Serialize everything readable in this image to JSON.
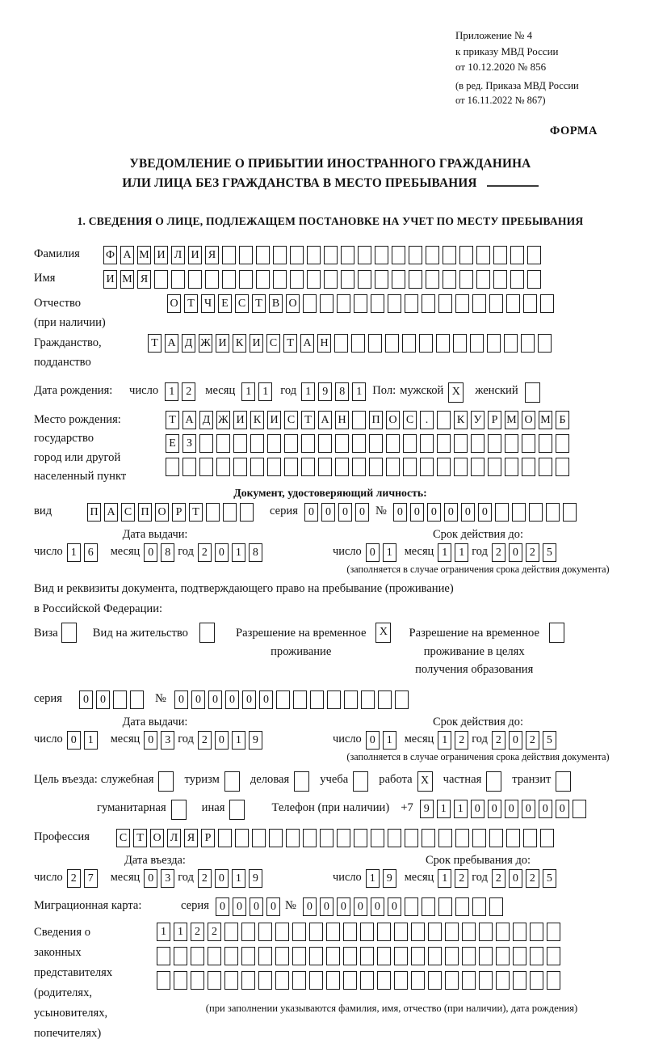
{
  "header": {
    "appendix_lines": [
      "Приложение № 4",
      "к приказу МВД России",
      "от 10.12.2020 № 856"
    ],
    "revision_lines": [
      "(в ред. Приказа МВД России",
      "от 16.11.2022 № 867)"
    ],
    "form_label": "ФОРМА"
  },
  "title": {
    "line1": "УВЕДОМЛЕНИЕ О ПРИБЫТИИ ИНОСТРАННОГО ГРАЖДАНИНА",
    "line2": "ИЛИ ЛИЦА БЕЗ ГРАЖДАНСТВА В МЕСТО ПРЕБЫВАНИЯ"
  },
  "section1_title": "1. СВЕДЕНИЯ О ЛИЦЕ, ПОДЛЕЖАЩЕМ ПОСТАНОВКЕ НА УЧЕТ ПО МЕСТУ ПРЕБЫВАНИЯ",
  "date_labels": {
    "day": "число",
    "month": "месяц",
    "year": "год"
  },
  "fields": {
    "surname": {
      "label": "Фамилия",
      "value": "ФАМИЛИЯ",
      "cells": 26
    },
    "given_name": {
      "label": "Имя",
      "value": "ИМЯ",
      "cells": 26
    },
    "patronymic": {
      "label_lines": [
        "Отчество",
        "(при наличии)"
      ],
      "value": "ОТЧЕСТВО",
      "cells": 23
    },
    "citizenship": {
      "label_lines": [
        "Гражданство,",
        "подданство"
      ],
      "value": "ТАДЖИКИСТАН",
      "cells": 24
    },
    "birth_date": {
      "label": "Дата рождения:",
      "day": "12",
      "month": "11",
      "year": "1981",
      "sex_label": "Пол:",
      "male_label": "мужской",
      "male_checked": "X",
      "female_label": "женский",
      "female_checked": ""
    },
    "birth_place": {
      "label_lines": [
        "Место рождения:",
        "государство",
        "город или другой",
        "населенный пункт"
      ],
      "row1": {
        "value": "ТАДЖИКИСТАН ПОС. КУРМОМБ",
        "cells": 24
      },
      "row2": {
        "value": "ЕЗ",
        "cells": 24
      },
      "row3": {
        "value": "",
        "cells": 24
      }
    }
  },
  "identity_doc": {
    "heading": "Документ, удостоверяющий личность:",
    "kind_label": "вид",
    "kind": {
      "value": "ПАСПОРТ",
      "cells": 10
    },
    "series_label": "серия",
    "series": {
      "value": "0000",
      "cells": 4
    },
    "number_label": "№",
    "number": {
      "value": "000000",
      "cells": 11
    },
    "issue": {
      "heading": "Дата выдачи:",
      "day": "16",
      "month": "08",
      "year": "2018"
    },
    "expiry": {
      "heading": "Срок действия до:",
      "day": "01",
      "month": "11",
      "year": "2025"
    },
    "expiry_note": "(заполняется в случае ограничения срока действия документа)"
  },
  "residence_doc": {
    "intro_line1": "Вид и реквизиты документа, подтверждающего право на пребывание (проживание)",
    "intro_line2": "в Российской Федерации:",
    "options": [
      {
        "label_lines": [
          "Виза"
        ],
        "checked": ""
      },
      {
        "label_lines": [
          "Вид на жительство"
        ],
        "checked": ""
      },
      {
        "label_lines": [
          "Разрешение на временное",
          "проживание"
        ],
        "checked": "X"
      },
      {
        "label_lines": [
          "Разрешение на временное",
          "проживание в целях",
          "получения образования"
        ],
        "checked": ""
      }
    ],
    "series_label": "серия",
    "series": {
      "value": "00",
      "cells": 4
    },
    "number_label": "№",
    "number": {
      "value": "000000",
      "cells": 14
    },
    "issue": {
      "heading": "Дата выдачи:",
      "day": "01",
      "month": "03",
      "year": "2019"
    },
    "expiry": {
      "heading": "Срок действия до:",
      "day": "01",
      "month": "12",
      "year": "2025"
    },
    "expiry_note": "(заполняется в случае ограничения срока действия документа)"
  },
  "visit": {
    "purpose_label": "Цель въезда:",
    "purposes_row1": [
      {
        "label": "служебная",
        "checked": ""
      },
      {
        "label": "туризм",
        "checked": ""
      },
      {
        "label": "деловая",
        "checked": ""
      },
      {
        "label": "учеба",
        "checked": ""
      },
      {
        "label": "работа",
        "checked": "X"
      },
      {
        "label": "частная",
        "checked": ""
      },
      {
        "label": "транзит",
        "checked": ""
      }
    ],
    "purposes_row2": [
      {
        "label": "гуманитарная",
        "checked": ""
      },
      {
        "label": "иная",
        "checked": ""
      }
    ],
    "phone_label": "Телефон (при наличии)",
    "phone_prefix": "+7",
    "phone": {
      "value": "911000000",
      "cells": 10
    },
    "profession_label": "Профессия",
    "profession": {
      "value": "СТОЛЯР",
      "cells": 26
    },
    "entry": {
      "heading": "Дата въезда:",
      "day": "27",
      "month": "03",
      "year": "2019"
    },
    "stay_until": {
      "heading": "Срок пребывания до:",
      "day": "19",
      "month": "12",
      "year": "2025"
    },
    "migration_card_label": "Миграционная карта:",
    "mc_series_label": "серия",
    "mc_series": {
      "value": "0000",
      "cells": 4
    },
    "mc_number_label": "№",
    "mc_number": {
      "value": "000000",
      "cells": 12
    }
  },
  "guardians": {
    "label_lines": [
      "Сведения о",
      "законных",
      "представителях",
      "(родителях,",
      "усыновителях,",
      "попечителях)"
    ],
    "row1": {
      "value": "1122",
      "cells": 24
    },
    "row2": {
      "value": "",
      "cells": 24
    },
    "row3": {
      "value": "",
      "cells": 24
    },
    "note": "(при заполнении указываются фамилия, имя, отчество (при наличии), дата рождения)"
  }
}
